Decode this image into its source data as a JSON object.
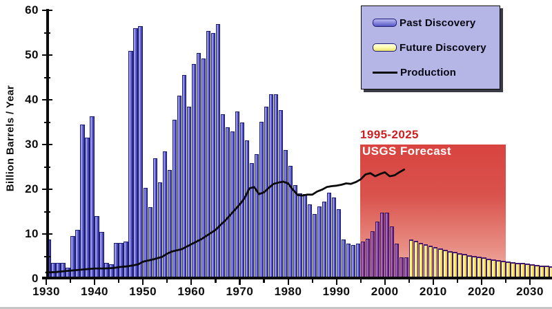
{
  "chart_data": {
    "type": "bar",
    "title": "",
    "xlabel": "",
    "ylabel": "Billion Barrels / Year",
    "ylim": [
      0,
      60
    ],
    "xlim": [
      1930,
      2035
    ],
    "y_ticks": [
      0,
      10,
      20,
      30,
      40,
      50,
      60
    ],
    "x_ticks": [
      1930,
      1940,
      1950,
      1960,
      1970,
      1980,
      1990,
      2000,
      2010,
      2020,
      2030
    ],
    "x_minor_tick_step": 5,
    "grid": false,
    "legend_position": "top-right",
    "series": [
      {
        "name": "Past Discovery",
        "type": "bar",
        "start_year": 1930,
        "values": [
          8.7,
          3.5,
          3.5,
          3.5,
          2.5,
          9.5,
          11,
          34.5,
          31.5,
          36.3,
          14,
          10.5,
          3.5,
          3.2,
          8,
          8,
          8.3,
          51,
          56,
          56.5,
          20.3,
          16,
          27,
          21.5,
          28.5,
          24.3,
          35.5,
          41,
          45.5,
          38.4,
          48,
          50.4,
          49.3,
          55.4,
          55,
          57,
          36.8,
          33.8,
          33,
          37.4,
          34.9,
          31,
          25.8,
          27.9,
          35.1,
          38.4,
          41.3,
          41.3,
          37.7,
          28.7,
          25.3,
          20.9,
          19.1,
          18.9,
          16.6,
          14.5,
          16.2,
          17.3,
          19.2,
          18.2,
          15.5,
          8.7,
          7.9,
          7.6,
          7.8,
          8.3,
          8.9,
          10.6,
          12.7,
          14.8,
          14.8,
          11.7,
          7.8,
          4.8,
          4.7
        ]
      },
      {
        "name": "Future Discovery",
        "type": "bar",
        "start_year": 2005,
        "values": [
          8.8,
          8.4,
          8.0,
          7.7,
          7.4,
          7.1,
          6.8,
          6.5,
          6.2,
          6.0,
          5.7,
          5.5,
          5.3,
          5.1,
          4.9,
          4.7,
          4.5,
          4.35,
          4.2,
          4.05,
          3.9,
          3.75,
          3.6,
          3.5,
          3.35,
          3.25,
          3.1,
          3.0,
          2.9,
          2.8
        ]
      },
      {
        "name": "Production",
        "type": "line",
        "points": [
          [
            1930,
            1.4
          ],
          [
            1932,
            1.5
          ],
          [
            1934,
            1.7
          ],
          [
            1936,
            1.9
          ],
          [
            1938,
            2.1
          ],
          [
            1940,
            2.3
          ],
          [
            1942,
            2.3
          ],
          [
            1944,
            2.4
          ],
          [
            1945,
            2.6
          ],
          [
            1947,
            2.8
          ],
          [
            1949,
            3.2
          ],
          [
            1950,
            3.8
          ],
          [
            1952,
            4.3
          ],
          [
            1954,
            4.9
          ],
          [
            1955,
            5.6
          ],
          [
            1956,
            6.1
          ],
          [
            1958,
            6.6
          ],
          [
            1960,
            7.7
          ],
          [
            1962,
            8.8
          ],
          [
            1963,
            9.5
          ],
          [
            1964,
            10.2
          ],
          [
            1965,
            10.9
          ],
          [
            1966,
            12
          ],
          [
            1967,
            13
          ],
          [
            1968,
            14.2
          ],
          [
            1969,
            15.4
          ],
          [
            1970,
            16.6
          ],
          [
            1971,
            18
          ],
          [
            1972,
            20.2
          ],
          [
            1973,
            20.5
          ],
          [
            1974,
            18.9
          ],
          [
            1975,
            19.3
          ],
          [
            1976,
            20.3
          ],
          [
            1977,
            21.2
          ],
          [
            1978,
            21.5
          ],
          [
            1979,
            21.7
          ],
          [
            1980,
            21.3
          ],
          [
            1981,
            19.9
          ],
          [
            1982,
            18.7
          ],
          [
            1983,
            18.6
          ],
          [
            1984,
            18.8
          ],
          [
            1985,
            18.8
          ],
          [
            1986,
            19.5
          ],
          [
            1987,
            19.9
          ],
          [
            1988,
            20.5
          ],
          [
            1989,
            20.7
          ],
          [
            1990,
            20.8
          ],
          [
            1991,
            21
          ],
          [
            1992,
            21.3
          ],
          [
            1993,
            21.2
          ],
          [
            1994,
            21.6
          ],
          [
            1995,
            22.2
          ],
          [
            1996,
            23.3
          ],
          [
            1997,
            23.6
          ],
          [
            1998,
            22.9
          ],
          [
            1999,
            23.4
          ],
          [
            2000,
            23.8
          ],
          [
            2001,
            22.9
          ],
          [
            2002,
            23.1
          ],
          [
            2003,
            23.8
          ],
          [
            2004,
            24.4
          ]
        ]
      }
    ],
    "annotations": {
      "forecast_range": "1995-2025",
      "forecast_label": "USGS Forecast",
      "forecast_span_years": [
        1995,
        2025
      ],
      "forecast_top_value": 30
    }
  },
  "legend": {
    "items": [
      {
        "label": "Past Discovery",
        "swatch": "blue-bar"
      },
      {
        "label": "Future Discovery",
        "swatch": "yellow-bar"
      },
      {
        "label": "Production",
        "swatch": "black-line"
      }
    ]
  },
  "colors": {
    "past_bar": "#5f5fce",
    "past_bar_in_forecast": "#7e3a96",
    "future_bar": "#fdf388",
    "future_bar_border": "#43186c",
    "production_line": "#0a0a0a",
    "forecast_region_top": "#d94440",
    "forecast_region_bottom": "#f2b5ab",
    "forecast_range_text": "#cd1f1f",
    "forecast_label_text": "#ffffff",
    "legend_background": "#b5b5e6",
    "axis": "#0a0a0a"
  }
}
